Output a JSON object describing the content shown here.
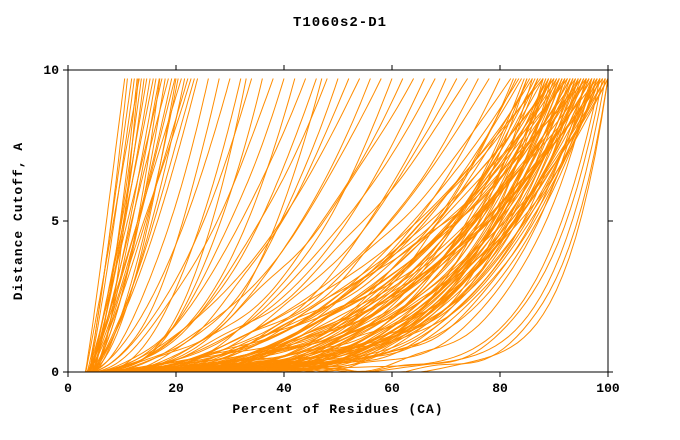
{
  "chart_data": {
    "type": "line",
    "title": "T1060s2-D1",
    "xlabel": "Percent of Residues (CA)",
    "ylabel": "Distance Cutoff, A",
    "xlim": [
      0,
      100
    ],
    "ylim": [
      0,
      10
    ],
    "x_ticks": [
      0,
      20,
      40,
      60,
      80,
      100
    ],
    "y_ticks": [
      0,
      5,
      10
    ],
    "grid": false,
    "legend": "none",
    "line_color": "#FF8C00",
    "background": "#FFFFFF",
    "y_max_data": 9.72,
    "curve_param_format": "[x_start_percent, x_percent_at_top, shape_exponent]",
    "curves": [
      [
        3.2,
        10.5,
        1.1
      ],
      [
        3.5,
        11,
        1.3
      ],
      [
        4,
        11.8,
        1.0
      ],
      [
        3.8,
        12.3,
        1.2
      ],
      [
        4.4,
        12.8,
        1.4
      ],
      [
        3.3,
        13.2,
        1.0
      ],
      [
        4.8,
        13.6,
        1.2
      ],
      [
        3.6,
        14.1,
        1.5
      ],
      [
        4.1,
        14.6,
        1.1
      ],
      [
        3.9,
        15.2,
        1.3
      ],
      [
        4.5,
        15.8,
        1.0
      ],
      [
        3.4,
        16.3,
        1.4
      ],
      [
        5,
        16.9,
        1.2
      ],
      [
        3.7,
        17.4,
        1.1
      ],
      [
        4.2,
        18,
        1.5
      ],
      [
        4.7,
        18.6,
        1.0
      ],
      [
        3.5,
        19.2,
        1.3
      ],
      [
        4,
        19.8,
        1.2
      ],
      [
        4.9,
        20.4,
        1.4
      ],
      [
        3.6,
        21,
        1.1
      ],
      [
        4.3,
        21.6,
        1.5
      ],
      [
        3.8,
        22.2,
        1.2
      ],
      [
        5.1,
        22.8,
        1.0
      ],
      [
        4.4,
        23.4,
        1.3
      ],
      [
        3.9,
        24,
        1.4
      ],
      [
        4.6,
        13,
        1.8
      ],
      [
        3.3,
        17,
        1.9
      ],
      [
        4.1,
        20,
        1.7
      ],
      [
        3.5,
        26,
        1.8
      ],
      [
        4.2,
        28,
        2.0
      ],
      [
        3.8,
        30,
        1.7
      ],
      [
        4.6,
        32,
        2.2
      ],
      [
        3.4,
        34,
        1.9
      ],
      [
        4.9,
        36,
        2.4
      ],
      [
        3.7,
        38,
        1.8
      ],
      [
        4.3,
        40,
        2.1
      ],
      [
        3.9,
        42,
        2.5
      ],
      [
        4.5,
        44,
        1.9
      ],
      [
        3.6,
        46,
        2.3
      ],
      [
        4.8,
        48,
        2.0
      ],
      [
        3.5,
        50,
        2.6
      ],
      [
        4.1,
        52,
        2.2
      ],
      [
        3.8,
        54,
        1.9
      ],
      [
        4.4,
        56,
        2.4
      ],
      [
        3.6,
        58,
        2.1
      ],
      [
        4.7,
        60,
        2.7
      ],
      [
        3.9,
        62,
        2.3
      ],
      [
        4.2,
        64,
        2.0
      ],
      [
        3.7,
        66,
        2.5
      ],
      [
        4.5,
        68,
        2.2
      ],
      [
        3.8,
        70,
        2.8
      ],
      [
        4.3,
        72,
        2.4
      ],
      [
        3.6,
        74,
        2.1
      ],
      [
        4.6,
        76,
        2.6
      ],
      [
        3.9,
        78,
        2.3
      ],
      [
        4.4,
        80,
        2.9
      ],
      [
        3.5,
        33,
        2.8
      ],
      [
        4,
        47,
        3.1
      ],
      [
        3.4,
        82,
        2.2
      ],
      [
        4.2,
        83,
        3.1
      ],
      [
        3.8,
        84,
        2.6
      ],
      [
        4.6,
        85,
        3.8
      ],
      [
        3.5,
        86,
        2.4
      ],
      [
        4.0,
        87,
        3.3
      ],
      [
        4.4,
        88,
        2.9
      ],
      [
        3.6,
        89,
        4.1
      ],
      [
        4.8,
        90,
        2.1
      ],
      [
        3.3,
        91,
        3.6
      ],
      [
        4.1,
        92,
        2.7
      ],
      [
        3.7,
        93,
        3.0
      ],
      [
        4.5,
        94,
        4.3
      ],
      [
        3.9,
        95,
        2.3
      ],
      [
        3.4,
        96,
        3.4
      ],
      [
        4.3,
        97,
        2.8
      ],
      [
        3.6,
        98,
        3.9
      ],
      [
        4.7,
        99,
        2.5
      ],
      [
        3.8,
        100,
        3.2
      ],
      [
        3.5,
        82.5,
        3.5
      ],
      [
        4.4,
        83.5,
        2.4
      ],
      [
        3.7,
        84.5,
        4.0
      ],
      [
        4.1,
        85.5,
        2.8
      ],
      [
        3.6,
        86.5,
        3.2
      ],
      [
        4.6,
        87.5,
        2.2
      ],
      [
        3.9,
        88.5,
        3.7
      ],
      [
        4.2,
        89.5,
        3.0
      ],
      [
        3.5,
        90.5,
        2.6
      ],
      [
        4.5,
        91.5,
        4.2
      ],
      [
        3.8,
        92.5,
        2.3
      ],
      [
        4.0,
        93.5,
        3.4
      ],
      [
        3.4,
        94.5,
        2.9
      ],
      [
        4.7,
        95.5,
        3.8
      ],
      [
        3.7,
        96.5,
        2.5
      ],
      [
        4.3,
        97.5,
        4.4
      ],
      [
        3.6,
        98.5,
        2.7
      ],
      [
        4.1,
        99.5,
        3.1
      ],
      [
        3.9,
        100,
        3.6
      ],
      [
        4.0,
        88,
        2.0
      ],
      [
        3.5,
        88.5,
        4.5
      ],
      [
        4.4,
        89,
        2.8
      ],
      [
        3.8,
        89.5,
        3.6
      ],
      [
        4.2,
        90,
        2.2
      ],
      [
        3.6,
        90.5,
        4.0
      ],
      [
        4.6,
        91,
        2.5
      ],
      [
        3.9,
        91.5,
        3.3
      ],
      [
        3.4,
        92,
        4.7
      ],
      [
        4.3,
        92.5,
        2.1
      ],
      [
        3.7,
        93,
        3.0
      ],
      [
        4.1,
        93.5,
        3.9
      ],
      [
        3.5,
        94,
        2.4
      ],
      [
        4.5,
        94.5,
        4.3
      ],
      [
        3.8,
        95,
        2.7
      ],
      [
        4.0,
        95.5,
        3.5
      ],
      [
        4.4,
        96,
        2.0
      ],
      [
        3.6,
        96.5,
        4.1
      ],
      [
        4.2,
        97,
        2.9
      ],
      [
        3.9,
        97.5,
        3.7
      ],
      [
        3.5,
        98,
        2.3
      ],
      [
        4.1,
        98.5,
        4.6
      ],
      [
        4.6,
        99,
        2.6
      ],
      [
        3.7,
        99.5,
        3.4
      ],
      [
        3.8,
        85,
        4.6
      ],
      [
        4.2,
        86,
        5.2
      ],
      [
        3.6,
        87,
        4.3
      ],
      [
        4.4,
        88,
        5.6
      ],
      [
        3.9,
        89,
        4.8
      ],
      [
        4.1,
        90,
        5.0
      ],
      [
        3.5,
        91,
        4.4
      ],
      [
        4.6,
        92,
        5.4
      ],
      [
        3.8,
        93,
        4.7
      ],
      [
        4.0,
        94,
        5.1
      ],
      [
        3.7,
        95,
        4.5
      ],
      [
        4.3,
        96,
        5.7
      ],
      [
        3.6,
        97,
        4.9
      ],
      [
        4.5,
        98,
        5.3
      ],
      [
        3.9,
        92.5,
        4.2
      ],
      [
        4.2,
        94.5,
        5.5
      ],
      [
        3.5,
        96.5,
        4.1
      ],
      [
        4.1,
        89.5,
        5.8
      ],
      [
        3.8,
        91.5,
        4.4
      ],
      [
        4.4,
        93.5,
        5.0
      ],
      [
        3.7,
        95.5,
        4.6
      ],
      [
        4.0,
        97.5,
        5.2
      ],
      [
        3.6,
        98.5,
        4.3
      ],
      [
        4,
        97,
        7
      ],
      [
        4.5,
        98.5,
        8.5
      ],
      [
        3.8,
        99.5,
        10
      ],
      [
        4.2,
        100,
        12
      ],
      [
        5,
        96,
        6.5
      ],
      [
        4.6,
        99,
        9
      ],
      [
        3.5,
        100,
        11
      ]
    ]
  }
}
